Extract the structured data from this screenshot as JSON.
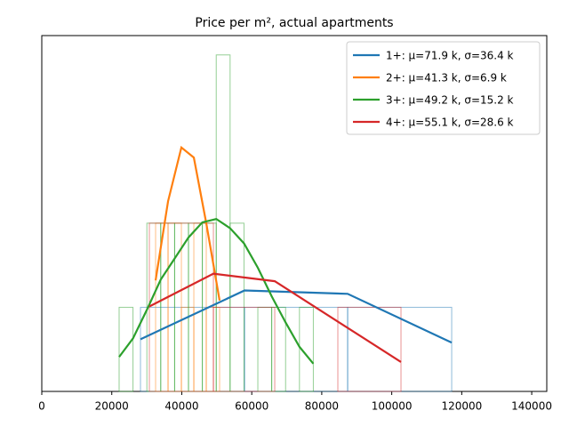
{
  "chart_data": {
    "type": "histogram",
    "title": "Price per m², actual apartments",
    "xlim": [
      0,
      144300
    ],
    "ylim": [
      0,
      4.23
    ],
    "xticks": [
      0,
      20000,
      40000,
      60000,
      80000,
      100000,
      120000,
      140000
    ],
    "legend": "upper right",
    "series": [
      {
        "name": "1+: μ=71.9 k, σ=36.4 k",
        "color": "#1f77b4",
        "x": [
          28200,
          57930,
          87400,
          117130
        ],
        "values": [
          0.62,
          1.2,
          1.16,
          0.58
        ],
        "bins": [
          28200,
          57930,
          87400,
          117130
        ],
        "counts": [
          1,
          1,
          1
        ]
      },
      {
        "name": "2+: μ=41.3 k, σ=6.9 k",
        "color": "#ff7f0e",
        "x": [
          32520,
          36080,
          39890,
          43450,
          47000,
          50810
        ],
        "values": [
          1.32,
          2.26,
          2.9,
          2.78,
          2.0,
          1.08
        ],
        "bins": [
          32520,
          36080,
          39890,
          43450,
          47000,
          50810
        ],
        "counts": [
          2,
          2,
          1,
          2,
          1
        ]
      },
      {
        "name": "3+: μ=49.2 k, σ=15.2 k",
        "color": "#2ca02c",
        "x": [
          22100,
          26060,
          30030,
          33990,
          37960,
          41920,
          45880,
          49850,
          53810,
          57780,
          61740,
          65700,
          69670,
          73630,
          77590
        ],
        "values": [
          0.41,
          0.63,
          0.97,
          1.33,
          1.58,
          1.83,
          2.01,
          2.05,
          1.94,
          1.76,
          1.47,
          1.13,
          0.82,
          0.53,
          0.33
        ],
        "bins": [
          22100,
          26060,
          30030,
          33990,
          37960,
          41920,
          45880,
          49850,
          53810,
          57780,
          61740,
          65700,
          69670,
          73630,
          77590
        ],
        "counts": [
          1,
          0,
          2,
          2,
          2,
          2,
          2,
          4,
          2,
          0,
          1,
          1,
          0,
          1
        ]
      },
      {
        "name": "4+: μ=55.1 k, σ=28.6 k",
        "color": "#d62728",
        "x": [
          30740,
          49040,
          66570,
          102640
        ],
        "values": [
          1.01,
          1.4,
          1.31,
          0.35
        ],
        "bins": [
          30740,
          49040,
          66570,
          84600,
          102640
        ],
        "counts": [
          2,
          1,
          0,
          1
        ]
      }
    ]
  }
}
